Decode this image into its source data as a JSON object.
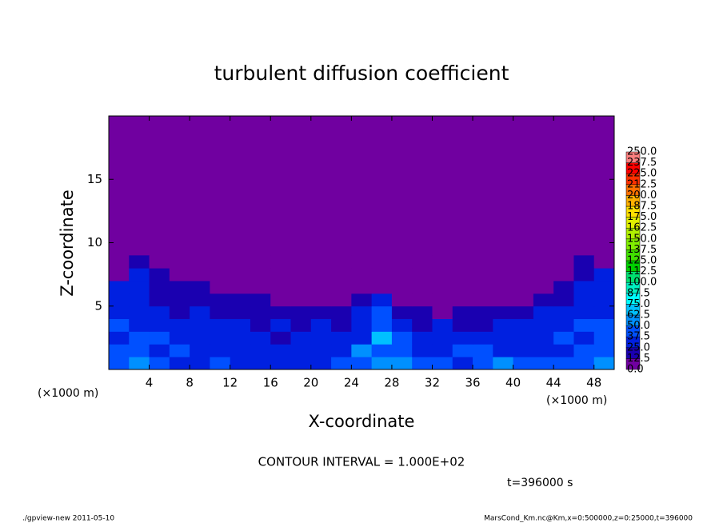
{
  "chart_data": {
    "type": "heatmap",
    "title": "turbulent diffusion coefficient",
    "x_label": "X-coordinate",
    "y_label": "Z-coordinate",
    "x_unit_label": "(×1000 m)",
    "y_unit_label": "(×1000 m)",
    "xlim": [
      0,
      50
    ],
    "ylim": [
      0,
      20
    ],
    "xticks": [
      4,
      8,
      12,
      16,
      20,
      24,
      28,
      32,
      36,
      40,
      44,
      48
    ],
    "yticks": [
      5,
      10,
      15
    ],
    "x": [
      1,
      3,
      5,
      7,
      9,
      11,
      13,
      15,
      17,
      19,
      21,
      23,
      25,
      27,
      29,
      31,
      33,
      35,
      37,
      39,
      41,
      43,
      45,
      47,
      49
    ],
    "y": [
      0.5,
      1.5,
      2.5,
      3.5,
      4.5,
      5.5,
      6.5,
      7.5,
      8.5
    ],
    "values": [
      [
        45,
        50,
        40,
        35,
        30,
        40,
        35,
        30,
        30,
        25,
        35,
        40,
        45,
        50,
        55,
        45,
        40,
        35,
        45,
        50,
        40,
        45,
        40,
        45,
        50
      ],
      [
        40,
        45,
        35,
        40,
        30,
        35,
        30,
        30,
        25,
        30,
        35,
        35,
        50,
        45,
        40,
        35,
        30,
        45,
        40,
        35,
        30,
        35,
        35,
        40,
        45
      ],
      [
        35,
        40,
        45,
        35,
        30,
        30,
        25,
        30,
        20,
        25,
        30,
        30,
        35,
        70,
        40,
        35,
        30,
        30,
        30,
        25,
        30,
        30,
        40,
        35,
        40
      ],
      [
        40,
        35,
        30,
        30,
        25,
        30,
        25,
        20,
        25,
        20,
        25,
        20,
        30,
        40,
        30,
        20,
        25,
        20,
        20,
        25,
        25,
        25,
        30,
        45,
        40
      ],
      [
        35,
        30,
        25,
        20,
        25,
        20,
        20,
        20,
        15,
        15,
        15,
        20,
        25,
        45,
        20,
        15,
        10,
        15,
        15,
        20,
        20,
        25,
        30,
        35,
        35
      ],
      [
        30,
        35,
        20,
        20,
        20,
        15,
        15,
        15,
        5,
        5,
        5,
        5,
        15,
        25,
        5,
        5,
        5,
        5,
        5,
        5,
        10,
        15,
        20,
        30,
        30
      ],
      [
        25,
        35,
        20,
        15,
        15,
        5,
        5,
        5,
        5,
        5,
        5,
        5,
        5,
        5,
        5,
        5,
        5,
        5,
        5,
        5,
        5,
        5,
        15,
        25,
        30
      ],
      [
        5,
        25,
        15,
        5,
        5,
        5,
        5,
        5,
        5,
        5,
        5,
        5,
        5,
        5,
        5,
        5,
        5,
        5,
        5,
        5,
        5,
        5,
        5,
        20,
        25
      ],
      [
        5,
        20,
        5,
        5,
        5,
        5,
        5,
        5,
        5,
        5,
        5,
        5,
        5,
        5,
        5,
        5,
        5,
        5,
        5,
        5,
        5,
        5,
        5,
        15,
        5
      ]
    ],
    "colorbar": {
      "levels": [
        {
          "value": 0,
          "label": "0.0"
        },
        {
          "value": 12.5,
          "label": "12.5"
        },
        {
          "value": 25,
          "label": "25.0"
        },
        {
          "value": 37.5,
          "label": "37.5"
        },
        {
          "value": 50,
          "label": "50.0"
        },
        {
          "value": 62.5,
          "label": "62.5"
        },
        {
          "value": 75,
          "label": "75.0"
        },
        {
          "value": 87.5,
          "label": "87.5"
        },
        {
          "value": 100,
          "label": "100.0"
        },
        {
          "value": 112.5,
          "label": "112.5"
        },
        {
          "value": 125,
          "label": "125.0"
        },
        {
          "value": 137.5,
          "label": "137.5"
        },
        {
          "value": 150,
          "label": "150.0"
        },
        {
          "value": 162.5,
          "label": "162.5"
        },
        {
          "value": 175,
          "label": "175.0"
        },
        {
          "value": 187.5,
          "label": "187.5"
        },
        {
          "value": 200,
          "label": "200.0"
        },
        {
          "value": 212.5,
          "label": "212.5"
        },
        {
          "value": 225,
          "label": "225.0"
        },
        {
          "value": 237.5,
          "label": "237.5"
        },
        {
          "value": 250,
          "label": "250.0"
        }
      ],
      "colors": [
        "#7000a0",
        "#1a00b0",
        "#0020e0",
        "#0050ff",
        "#0090ff",
        "#00c0ff",
        "#00ffff",
        "#00f0c0",
        "#00e070",
        "#00d000",
        "#40e000",
        "#80f000",
        "#b0f000",
        "#e0f000",
        "#ffe000",
        "#ffb000",
        "#ff7000",
        "#ff3000",
        "#ff0000",
        "#ff8080"
      ]
    },
    "contour_interval": "CONTOUR INTERVAL = 1.000E+02",
    "time_label": "t=396000 s",
    "footer_left": "./gpview-new  2011-05-10",
    "footer_right": "MarsCond_Km.nc@Km,x=0:500000,z=0:25000,t=396000"
  }
}
